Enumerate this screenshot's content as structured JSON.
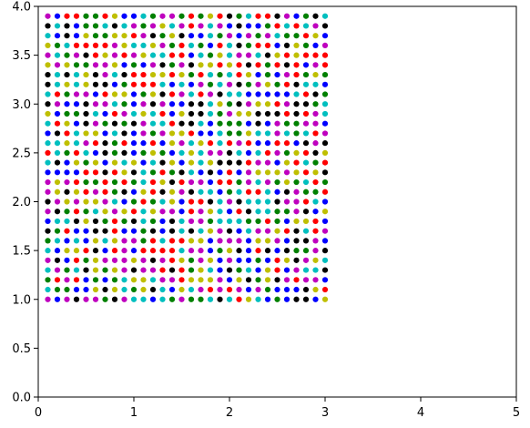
{
  "chart_data": {
    "type": "scatter",
    "title": "",
    "xlabel": "",
    "ylabel": "",
    "xlim": [
      0,
      5
    ],
    "ylim": [
      0,
      4
    ],
    "grid": false,
    "x_ticks": [
      0,
      1,
      2,
      3,
      4,
      5
    ],
    "x_tick_labels": [
      "0",
      "1",
      "2",
      "3",
      "4",
      "5"
    ],
    "y_ticks": [
      0.0,
      0.5,
      1.0,
      1.5,
      2.0,
      2.5,
      3.0,
      3.5,
      4.0
    ],
    "y_tick_labels": [
      "0.0",
      "0.5",
      "1.0",
      "1.5",
      "2.0",
      "2.5",
      "3.0",
      "3.5",
      "4.0"
    ],
    "grid_points": {
      "x": [
        0.1,
        0.2,
        0.3,
        0.4,
        0.5,
        0.6,
        0.7,
        0.8,
        0.9,
        1.0,
        1.1,
        1.2,
        1.3,
        1.4,
        1.5,
        1.6,
        1.7,
        1.8,
        1.9,
        2.0,
        2.1,
        2.2,
        2.3,
        2.4,
        2.5,
        2.6,
        2.7,
        2.8,
        2.9,
        3.0
      ],
      "y": [
        1.0,
        1.1,
        1.2,
        1.3,
        1.4,
        1.5,
        1.6,
        1.7,
        1.8,
        1.9,
        2.0,
        2.1,
        2.2,
        2.3,
        2.4,
        2.5,
        2.6,
        2.7,
        2.8,
        2.9,
        3.0,
        3.1,
        3.2,
        3.3,
        3.4,
        3.5,
        3.6,
        3.7,
        3.8,
        3.9
      ]
    },
    "palette": [
      "#ff0000",
      "#008000",
      "#0000ff",
      "#bfbf00",
      "#bf00bf",
      "#00bfbf",
      "#000000"
    ],
    "palette_names": [
      "red",
      "green",
      "blue",
      "yellow",
      "magenta",
      "cyan",
      "black"
    ],
    "color_assignment": "pseudo-random color per point"
  }
}
